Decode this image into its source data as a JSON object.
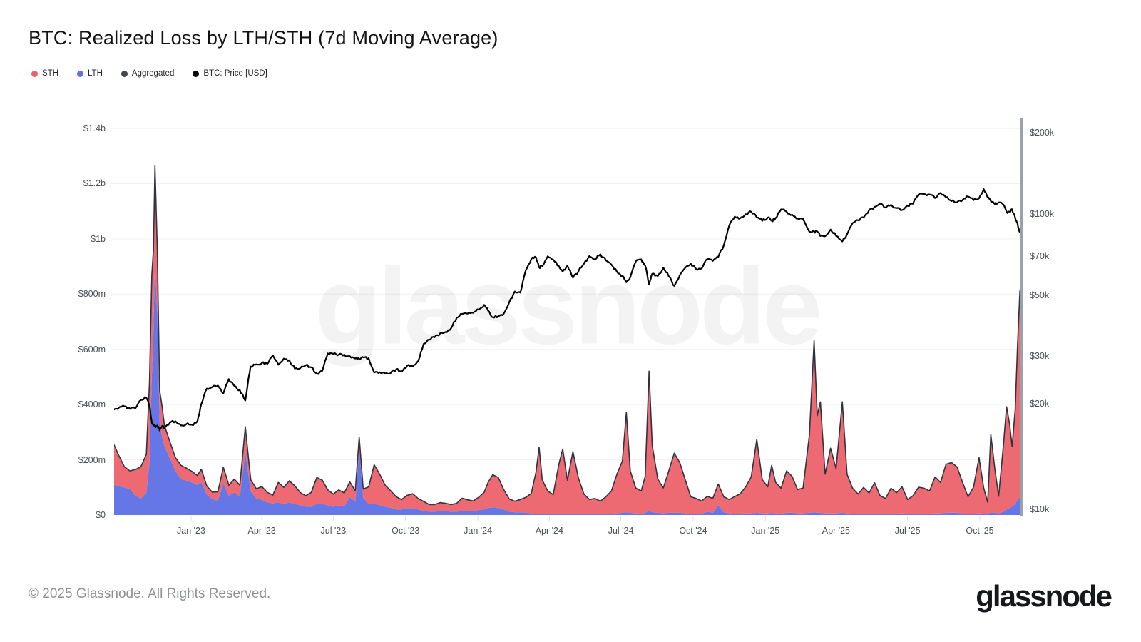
{
  "header": {
    "title": "BTC: Realized Loss by LTH/STH (7d Moving Average)"
  },
  "legend": {
    "items": [
      {
        "label": "STH",
        "color": "#ed5f6b"
      },
      {
        "label": "LTH",
        "color": "#5f71e4"
      },
      {
        "label": "Aggregated",
        "color": "#434756"
      },
      {
        "label": "BTC: Price [USD]",
        "color": "#0a0a0a"
      }
    ]
  },
  "watermark": {
    "text": "glassnode"
  },
  "footer": {
    "copyright": "© 2025 Glassnode. All Rights Reserved.",
    "brand": "glassnode"
  },
  "chart_data": {
    "type": "area",
    "title": "BTC: Realized Loss by LTH/STH (7d Moving Average)",
    "stacked_series_order": [
      "LTH",
      "STH"
    ],
    "series_colors": {
      "STH": "#ee6a72",
      "LTH": "#6577e6",
      "Aggregated": "#30333f",
      "BTC: Price [USD]": "#000000"
    },
    "left_axis": {
      "title": "Realized Loss (USD)",
      "scale": "linear",
      "range_musd": [
        0,
        1400
      ],
      "ticks": [
        {
          "label": "$0",
          "value": 0
        },
        {
          "label": "$200m",
          "value": 200
        },
        {
          "label": "$400m",
          "value": 400
        },
        {
          "label": "$600m",
          "value": 600
        },
        {
          "label": "$800m",
          "value": 800
        },
        {
          "label": "$1b",
          "value": 1000
        },
        {
          "label": "$1.2b",
          "value": 1200
        },
        {
          "label": "$1.4b",
          "value": 1400
        }
      ]
    },
    "right_axis": {
      "title": "BTC: Price (USD)",
      "scale": "log",
      "ticks": [
        {
          "label": "$10k",
          "value": 10
        },
        {
          "label": "$20k",
          "value": 20
        },
        {
          "label": "$30k",
          "value": 30
        },
        {
          "label": "$50k",
          "value": 50
        },
        {
          "label": "$70k",
          "value": 70
        },
        {
          "label": "$100k",
          "value": 100
        },
        {
          "label": "$200k",
          "value": 200
        }
      ]
    },
    "x_axis": {
      "ticks": [
        {
          "label": "Jan '23",
          "date": "2023-01-01"
        },
        {
          "label": "Apr '23",
          "date": "2023-04-01"
        },
        {
          "label": "Jul '23",
          "date": "2023-07-01"
        },
        {
          "label": "Oct '23",
          "date": "2023-10-01"
        },
        {
          "label": "Jan '24",
          "date": "2024-01-01"
        },
        {
          "label": "Apr '24",
          "date": "2024-04-01"
        },
        {
          "label": "Jul '24",
          "date": "2024-07-01"
        },
        {
          "label": "Oct '24",
          "date": "2024-10-01"
        },
        {
          "label": "Jan '25",
          "date": "2025-01-01"
        },
        {
          "label": "Apr '25",
          "date": "2025-04-01"
        },
        {
          "label": "Jul '25",
          "date": "2025-07-01"
        },
        {
          "label": "Oct '25",
          "date": "2025-10-01"
        }
      ]
    },
    "columns": [
      "date",
      "sth_realized_loss_musd",
      "lth_realized_loss_musd",
      "btc_price_kusd"
    ],
    "points": [
      [
        "2022-09-24",
        150,
        110,
        18.9
      ],
      [
        "2022-10-01",
        110,
        105,
        19.3
      ],
      [
        "2022-10-08",
        75,
        100,
        19.5
      ],
      [
        "2022-10-15",
        65,
        95,
        19.1
      ],
      [
        "2022-10-22",
        95,
        70,
        19.2
      ],
      [
        "2022-10-29",
        115,
        60,
        20.6
      ],
      [
        "2022-11-05",
        140,
        80,
        21.0
      ],
      [
        "2022-11-09",
        290,
        190,
        19.6
      ],
      [
        "2022-11-12",
        370,
        500,
        17.0
      ],
      [
        "2022-11-14",
        300,
        660,
        16.6
      ],
      [
        "2022-11-16",
        345,
        920,
        16.5
      ],
      [
        "2022-11-19",
        240,
        720,
        16.6
      ],
      [
        "2022-11-22",
        120,
        330,
        15.9
      ],
      [
        "2022-11-25",
        110,
        285,
        16.5
      ],
      [
        "2022-11-28",
        75,
        250,
        16.2
      ],
      [
        "2022-12-05",
        60,
        205,
        17.0
      ],
      [
        "2022-12-12",
        48,
        160,
        17.2
      ],
      [
        "2022-12-19",
        50,
        130,
        16.6
      ],
      [
        "2022-12-26",
        45,
        125,
        16.8
      ],
      [
        "2023-01-02",
        40,
        118,
        16.7
      ],
      [
        "2023-01-09",
        35,
        108,
        17.2
      ],
      [
        "2023-01-14",
        48,
        118,
        19.9
      ],
      [
        "2023-01-21",
        30,
        75,
        22.7
      ],
      [
        "2023-01-28",
        25,
        58,
        23.0
      ],
      [
        "2023-02-04",
        32,
        52,
        23.3
      ],
      [
        "2023-02-11",
        58,
        115,
        21.8
      ],
      [
        "2023-02-18",
        38,
        70,
        24.6
      ],
      [
        "2023-02-25",
        48,
        82,
        23.2
      ],
      [
        "2023-03-04",
        42,
        66,
        22.4
      ],
      [
        "2023-03-11",
        90,
        230,
        20.5
      ],
      [
        "2023-03-15",
        62,
        145,
        24.7
      ],
      [
        "2023-03-18",
        42,
        85,
        27.4
      ],
      [
        "2023-03-25",
        35,
        60,
        27.9
      ],
      [
        "2023-04-01",
        48,
        55,
        28.2
      ],
      [
        "2023-04-08",
        36,
        46,
        28.0
      ],
      [
        "2023-04-15",
        30,
        42,
        30.1
      ],
      [
        "2023-04-22",
        72,
        46,
        27.8
      ],
      [
        "2023-04-29",
        60,
        40,
        29.3
      ],
      [
        "2023-05-06",
        78,
        46,
        28.9
      ],
      [
        "2023-05-13",
        66,
        40,
        26.9
      ],
      [
        "2023-05-20",
        46,
        35,
        27.0
      ],
      [
        "2023-05-27",
        40,
        30,
        27.7
      ],
      [
        "2023-06-03",
        52,
        30,
        27.2
      ],
      [
        "2023-06-10",
        96,
        40,
        25.8
      ],
      [
        "2023-06-17",
        86,
        40,
        26.4
      ],
      [
        "2023-06-24",
        56,
        35,
        30.6
      ],
      [
        "2023-07-01",
        46,
        30,
        30.5
      ],
      [
        "2023-07-08",
        56,
        35,
        30.3
      ],
      [
        "2023-07-15",
        50,
        30,
        30.3
      ],
      [
        "2023-07-22",
        55,
        65,
        29.9
      ],
      [
        "2023-07-29",
        40,
        48,
        29.3
      ],
      [
        "2023-08-03",
        36,
        246,
        29.2
      ],
      [
        "2023-08-08",
        32,
        62,
        29.6
      ],
      [
        "2023-08-15",
        62,
        40,
        29.4
      ],
      [
        "2023-08-22",
        142,
        40,
        26.0
      ],
      [
        "2023-08-29",
        112,
        36,
        26.1
      ],
      [
        "2023-09-05",
        78,
        30,
        25.8
      ],
      [
        "2023-09-12",
        62,
        26,
        25.9
      ],
      [
        "2023-09-19",
        46,
        20,
        26.7
      ],
      [
        "2023-09-26",
        36,
        20,
        26.2
      ],
      [
        "2023-10-03",
        46,
        25,
        27.6
      ],
      [
        "2023-10-10",
        52,
        25,
        27.4
      ],
      [
        "2023-10-17",
        40,
        20,
        28.7
      ],
      [
        "2023-10-24",
        34,
        15,
        33.2
      ],
      [
        "2023-10-31",
        26,
        12,
        34.4
      ],
      [
        "2023-11-07",
        26,
        12,
        35.1
      ],
      [
        "2023-11-14",
        30,
        15,
        36.3
      ],
      [
        "2023-11-21",
        28,
        14,
        36.7
      ],
      [
        "2023-11-28",
        26,
        12,
        37.9
      ],
      [
        "2023-12-05",
        30,
        12,
        41.4
      ],
      [
        "2023-12-12",
        46,
        15,
        42.8
      ],
      [
        "2023-12-19",
        40,
        15,
        42.9
      ],
      [
        "2023-12-26",
        36,
        15,
        43.2
      ],
      [
        "2024-01-02",
        46,
        18,
        44.4
      ],
      [
        "2024-01-09",
        62,
        20,
        46.2
      ],
      [
        "2024-01-14",
        92,
        26,
        44.0
      ],
      [
        "2024-01-20",
        118,
        28,
        41.6
      ],
      [
        "2024-01-27",
        110,
        26,
        42.0
      ],
      [
        "2024-02-03",
        72,
        20,
        42.9
      ],
      [
        "2024-02-10",
        46,
        12,
        47.3
      ],
      [
        "2024-02-17",
        40,
        10,
        51.8
      ],
      [
        "2024-02-24",
        46,
        10,
        51.3
      ],
      [
        "2024-03-02",
        56,
        8,
        62.0
      ],
      [
        "2024-03-09",
        72,
        6,
        68.2
      ],
      [
        "2024-03-15",
        150,
        5,
        69.2
      ],
      [
        "2024-03-19",
        240,
        5,
        63.5
      ],
      [
        "2024-03-23",
        122,
        5,
        64.2
      ],
      [
        "2024-03-30",
        82,
        5,
        69.8
      ],
      [
        "2024-04-06",
        70,
        4,
        67.8
      ],
      [
        "2024-04-13",
        178,
        4,
        64.3
      ],
      [
        "2024-04-18",
        235,
        4,
        61.3
      ],
      [
        "2024-04-24",
        122,
        4,
        64.5
      ],
      [
        "2024-05-01",
        226,
        4,
        58.2
      ],
      [
        "2024-05-08",
        130,
        4,
        61.4
      ],
      [
        "2024-05-15",
        72,
        4,
        65.5
      ],
      [
        "2024-05-22",
        52,
        4,
        70.0
      ],
      [
        "2024-05-29",
        56,
        4,
        68.2
      ],
      [
        "2024-06-05",
        46,
        4,
        71.0
      ],
      [
        "2024-06-12",
        62,
        4,
        67.5
      ],
      [
        "2024-06-19",
        82,
        5,
        65.0
      ],
      [
        "2024-06-26",
        142,
        6,
        61.2
      ],
      [
        "2024-07-03",
        188,
        8,
        59.0
      ],
      [
        "2024-07-08",
        362,
        10,
        56.0
      ],
      [
        "2024-07-13",
        152,
        8,
        58.5
      ],
      [
        "2024-07-20",
        92,
        6,
        66.8
      ],
      [
        "2024-07-27",
        82,
        5,
        68.0
      ],
      [
        "2024-08-01",
        132,
        8,
        64.5
      ],
      [
        "2024-08-06",
        506,
        15,
        55.0
      ],
      [
        "2024-08-10",
        242,
        10,
        60.2
      ],
      [
        "2024-08-17",
        122,
        8,
        59.0
      ],
      [
        "2024-08-24",
        92,
        6,
        63.4
      ],
      [
        "2024-08-31",
        152,
        8,
        58.9
      ],
      [
        "2024-09-07",
        216,
        8,
        54.3
      ],
      [
        "2024-09-14",
        182,
        8,
        59.4
      ],
      [
        "2024-09-21",
        122,
        6,
        63.3
      ],
      [
        "2024-09-28",
        62,
        4,
        65.6
      ],
      [
        "2024-10-05",
        56,
        4,
        62.6
      ],
      [
        "2024-10-12",
        46,
        5,
        63.0
      ],
      [
        "2024-10-19",
        56,
        12,
        68.2
      ],
      [
        "2024-10-26",
        52,
        8,
        67.1
      ],
      [
        "2024-11-02",
        76,
        36,
        69.4
      ],
      [
        "2024-11-09",
        56,
        10,
        76.6
      ],
      [
        "2024-11-16",
        50,
        6,
        90.6
      ],
      [
        "2024-11-23",
        62,
        5,
        97.8
      ],
      [
        "2024-11-30",
        72,
        5,
        96.5
      ],
      [
        "2024-12-07",
        96,
        6,
        99.9
      ],
      [
        "2024-12-14",
        132,
        6,
        101.9
      ],
      [
        "2024-12-21",
        266,
        8,
        97.1
      ],
      [
        "2024-12-28",
        122,
        6,
        94.3
      ],
      [
        "2025-01-04",
        96,
        6,
        97.0
      ],
      [
        "2025-01-09",
        172,
        8,
        94.4
      ],
      [
        "2025-01-14",
        112,
        6,
        96.6
      ],
      [
        "2025-01-21",
        92,
        5,
        104.0
      ],
      [
        "2025-01-28",
        152,
        8,
        102.0
      ],
      [
        "2025-02-04",
        132,
        8,
        99.4
      ],
      [
        "2025-02-11",
        86,
        6,
        96.2
      ],
      [
        "2025-02-18",
        92,
        6,
        95.8
      ],
      [
        "2025-02-26",
        282,
        8,
        86.0
      ],
      [
        "2025-03-04",
        622,
        10,
        86.1
      ],
      [
        "2025-03-08",
        352,
        8,
        86.2
      ],
      [
        "2025-03-12",
        402,
        8,
        82.9
      ],
      [
        "2025-03-18",
        142,
        6,
        82.8
      ],
      [
        "2025-03-25",
        236,
        6,
        87.6
      ],
      [
        "2025-04-01",
        162,
        6,
        83.1
      ],
      [
        "2025-04-09",
        402,
        8,
        79.2
      ],
      [
        "2025-04-15",
        142,
        6,
        84.2
      ],
      [
        "2025-04-22",
        92,
        5,
        92.6
      ],
      [
        "2025-04-29",
        72,
        4,
        94.8
      ],
      [
        "2025-05-06",
        96,
        4,
        97.0
      ],
      [
        "2025-05-13",
        76,
        4,
        103.3
      ],
      [
        "2025-05-20",
        112,
        5,
        106.3
      ],
      [
        "2025-05-27",
        66,
        4,
        109.2
      ],
      [
        "2025-06-03",
        56,
        4,
        105.6
      ],
      [
        "2025-06-10",
        92,
        5,
        108.0
      ],
      [
        "2025-06-17",
        76,
        5,
        105.2
      ],
      [
        "2025-06-24",
        96,
        6,
        103.4
      ],
      [
        "2025-07-01",
        52,
        4,
        107.3
      ],
      [
        "2025-07-08",
        66,
        4,
        109.1
      ],
      [
        "2025-07-15",
        96,
        5,
        117.9
      ],
      [
        "2025-07-22",
        92,
        5,
        118.5
      ],
      [
        "2025-07-29",
        82,
        5,
        118.0
      ],
      [
        "2025-08-05",
        132,
        6,
        114.5
      ],
      [
        "2025-08-12",
        112,
        6,
        119.6
      ],
      [
        "2025-08-19",
        176,
        8,
        115.2
      ],
      [
        "2025-08-26",
        182,
        8,
        111.5
      ],
      [
        "2025-09-02",
        166,
        8,
        110.6
      ],
      [
        "2025-09-09",
        112,
        6,
        112.6
      ],
      [
        "2025-09-16",
        62,
        4,
        115.9
      ],
      [
        "2025-09-23",
        96,
        5,
        112.5
      ],
      [
        "2025-09-30",
        202,
        6,
        114.2
      ],
      [
        "2025-10-06",
        92,
        5,
        123.5
      ],
      [
        "2025-10-11",
        42,
        4,
        115.0
      ],
      [
        "2025-10-15",
        282,
        10,
        111.6
      ],
      [
        "2025-10-20",
        162,
        8,
        108.8
      ],
      [
        "2025-10-25",
        62,
        6,
        110.4
      ],
      [
        "2025-10-31",
        242,
        12,
        108.1
      ],
      [
        "2025-11-04",
        372,
        20,
        101.6
      ],
      [
        "2025-11-08",
        302,
        25,
        102.1
      ],
      [
        "2025-11-11",
        218,
        30,
        104.1
      ],
      [
        "2025-11-15",
        342,
        40,
        96.6
      ],
      [
        "2025-11-18",
        562,
        55,
        92.1
      ],
      [
        "2025-11-21",
        748,
        65,
        85.6
      ]
    ]
  }
}
